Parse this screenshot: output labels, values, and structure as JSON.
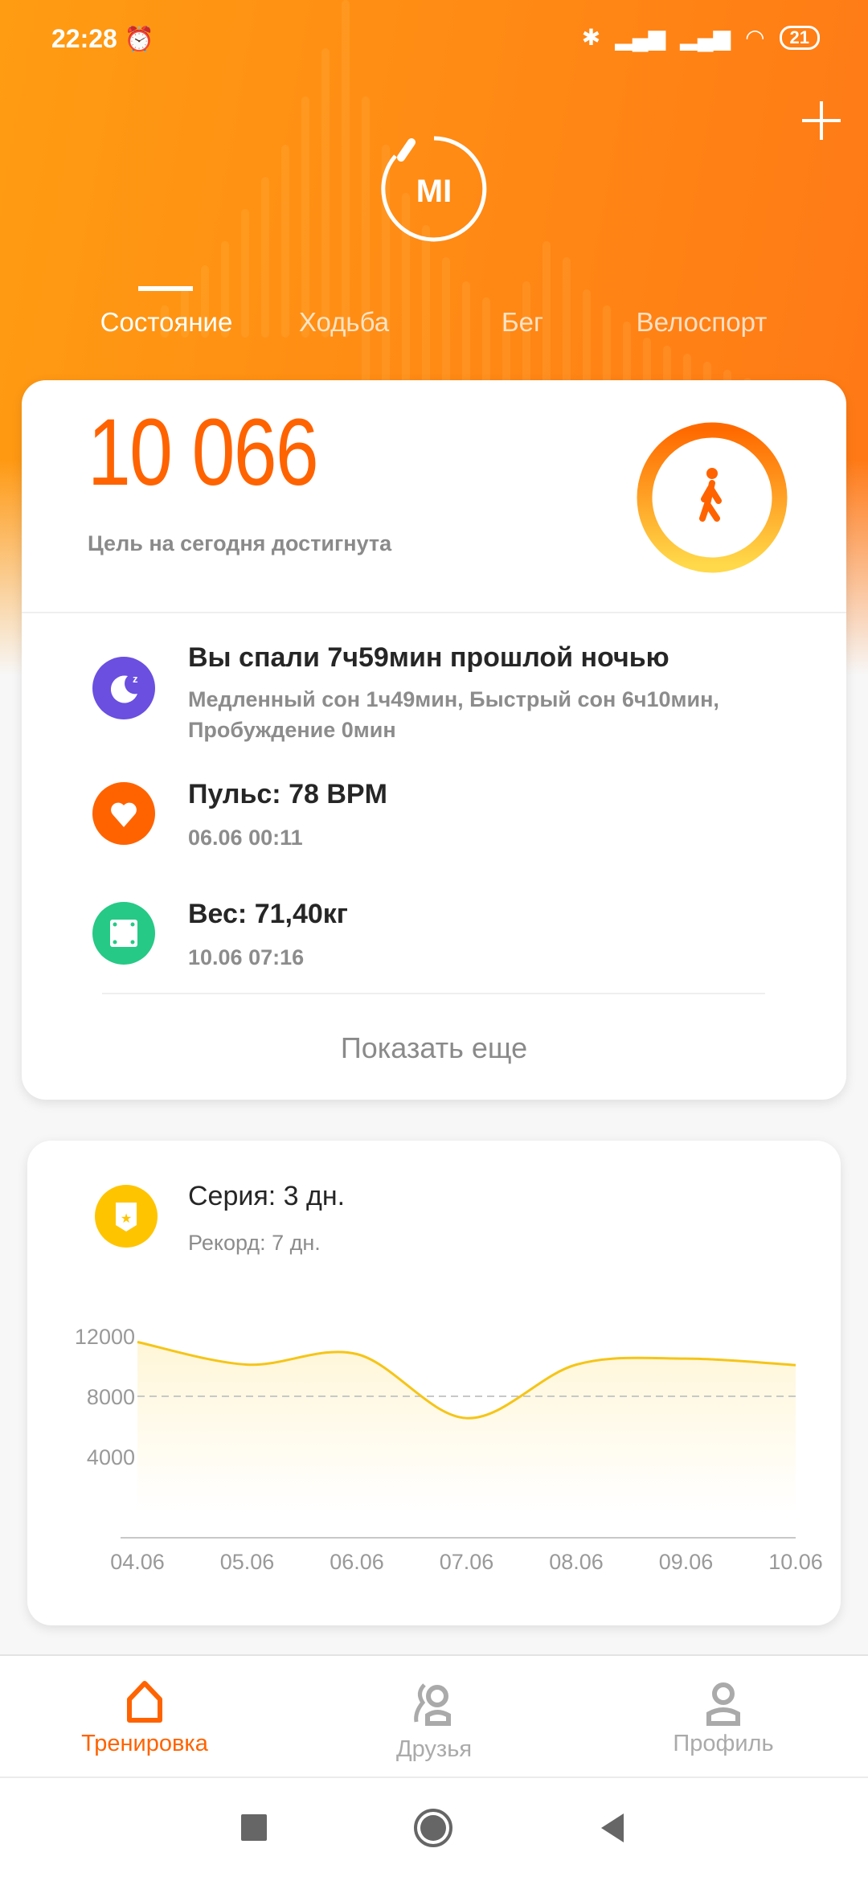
{
  "status_bar": {
    "time": "22:28",
    "battery": "21",
    "icons": [
      "alarm-icon",
      "bluetooth-icon",
      "signal-icon",
      "signal-icon",
      "wifi-icon",
      "battery-icon"
    ]
  },
  "header": {
    "logo": "MI",
    "add_icon": "plus-icon",
    "tabs": [
      {
        "label": "Состояние",
        "active": true
      },
      {
        "label": "Ходьба"
      },
      {
        "label": "Бег"
      },
      {
        "label": "Велоспорт"
      }
    ]
  },
  "steps_card": {
    "steps": "10 066",
    "goal_text": "Цель на сегодня достигнута",
    "progress_percent": 100,
    "rows": [
      {
        "icon": "sleep-icon",
        "color": "#6a4fe0",
        "title": "Вы спали 7ч59мин прошлой ночью",
        "sub1": "Медленный сон 1ч49мин, Быстрый сон 6ч10мин,",
        "sub2": "Пробуждение 0мин"
      },
      {
        "icon": "heart-icon",
        "color": "#ff6300",
        "title": "Пульс: 78 BPM",
        "sub1": "06.06 00:11"
      },
      {
        "icon": "scale-icon",
        "color": "#26c986",
        "title": "Вес: 71,40кг",
        "sub1": "10.06 07:16"
      }
    ],
    "show_more": "Показать еще"
  },
  "streak_card": {
    "icon": "badge-icon",
    "color": "#ffc400",
    "title": "Серия: 3 дн.",
    "record": "Рекорд: 7 дн."
  },
  "chart_data": {
    "type": "area",
    "categories": [
      "04.06",
      "05.06",
      "06.06",
      "07.06",
      "08.06",
      "09.06",
      "10.06"
    ],
    "values": [
      11600,
      10100,
      10800,
      6550,
      10100,
      10500,
      10066
    ],
    "yticks": [
      "12000",
      "8000",
      "4000"
    ],
    "goal_line": 8000,
    "line_color": "#f5c518",
    "grid": false
  },
  "bottom_nav": [
    {
      "label": "Тренировка",
      "icon": "home-icon",
      "active": true
    },
    {
      "label": "Друзья",
      "icon": "friends-icon"
    },
    {
      "label": "Профиль",
      "icon": "profile-icon"
    }
  ],
  "accent": "#ff6300"
}
